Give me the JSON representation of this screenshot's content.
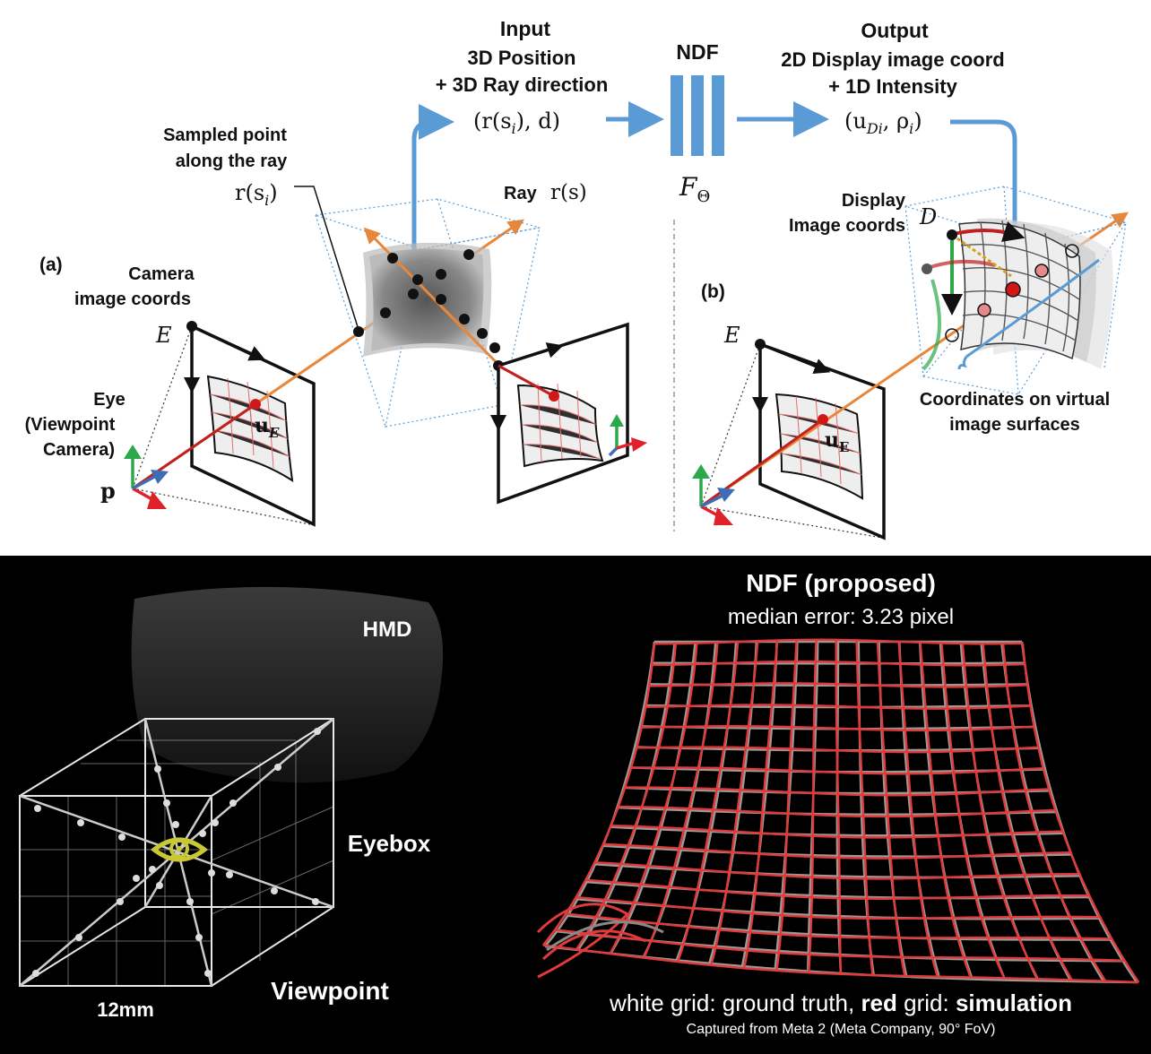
{
  "top": {
    "input_title": "Input",
    "input_line1": "3D Position",
    "input_line2": "+ 3D Ray direction",
    "input_math": "(r(s",
    "input_math_sub": "i",
    "input_math_end": "), d)",
    "ndf_title": "NDF",
    "ndf_math": "F",
    "ndf_math_sub": "Θ",
    "output_title": "Output",
    "output_line1": "2D Display image coord",
    "output_line2": "+ 1D Intensity",
    "output_math": "(u",
    "output_math_sub": "Di",
    "output_math_mid": ", ρ",
    "output_math_sub2": "i",
    "output_math_end": ")",
    "sampled_line1": "Sampled point",
    "sampled_line2": "along the ray",
    "sampled_math": "r(s",
    "sampled_math_sub": "i",
    "sampled_math_end": ")",
    "ray_label": "Ray",
    "ray_math": "r(s)",
    "panel_a": "(a)",
    "panel_b": "(b)",
    "camera_line1": "Camera",
    "camera_line2": "image coords",
    "eye_line1": "Eye",
    "eye_line2": "(Viewpoint",
    "eye_line3": "Camera)",
    "p_label": "p",
    "E_label_a": "E",
    "E_label_b": "E",
    "uE_a": "u",
    "uE_a_sub": "E",
    "uE_b": "u",
    "uE_b_sub": "E",
    "display_line1": "Display",
    "display_line2": "Image coords",
    "D_label": "D",
    "coords_line1": "Coordinates on virtual",
    "coords_line2": "image surfaces"
  },
  "bottom": {
    "hmd_label": "HMD",
    "eyebox_label": "Eyebox",
    "viewpoint_label": "Viewpoint",
    "size_label": "12mm",
    "ndf_title": "NDF (proposed)",
    "median_error": "median error: 3.23 pixel",
    "legend_part1": "white grid: ground truth, ",
    "legend_red": "red",
    "legend_part2": " grid: ",
    "legend_sim": "simulation",
    "captured": "Captured from Meta 2 (Meta Company, 90° FoV)"
  },
  "colors": {
    "ray_orange": "#e8873a",
    "flow_blue": "#5b9bd5",
    "grid_red": "#e03a3a",
    "axis_green": "#2aa84a",
    "axis_red": "#e0202a",
    "axis_blue": "#3f6db5",
    "eye_yellow": "#c8c832"
  }
}
